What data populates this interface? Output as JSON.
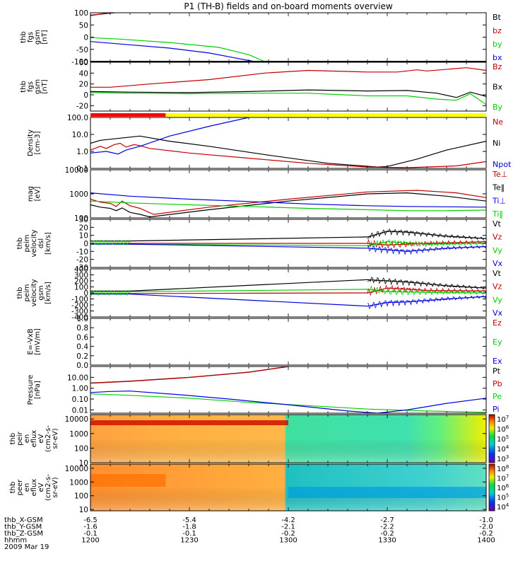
{
  "title": "P1 (TH-B) fields and on-board moments overview",
  "colors": {
    "black": "#000000",
    "red": "#c00000",
    "green": "#00d000",
    "blue": "#0000e0",
    "yellow": "#ffff00"
  },
  "chart_data": [
    {
      "type": "line",
      "ylabel": [
        "thb",
        "fgs",
        "gsm",
        "[nT]"
      ],
      "ylim": [
        -100,
        100
      ],
      "yticks": [
        100,
        50,
        0,
        -50,
        -100
      ],
      "legend": [
        "Bt",
        "bz",
        "by",
        "bx"
      ],
      "legend_colors": [
        "black",
        "red",
        "green",
        "blue"
      ],
      "series": [
        {
          "name": "Bt",
          "color": "black",
          "x": [
            1200,
            1212
          ],
          "y": [
            90,
            100
          ]
        },
        {
          "name": "bz",
          "color": "red",
          "x": [
            1200,
            1206,
            1212
          ],
          "y": [
            88,
            96,
            100
          ]
        },
        {
          "name": "by",
          "color": "green",
          "x": [
            1200,
            1215,
            1240,
            1265,
            1280,
            1288
          ],
          "y": [
            -2,
            -8,
            -22,
            -42,
            -72,
            -100
          ]
        },
        {
          "name": "bx",
          "color": "blue",
          "x": [
            1200,
            1215,
            1240,
            1260,
            1273,
            1283
          ],
          "y": [
            -18,
            -28,
            -45,
            -65,
            -85,
            -100
          ]
        }
      ]
    },
    {
      "type": "line",
      "ylabel": [
        "thb",
        "fgs",
        "gsm",
        "[nT]"
      ],
      "ylim": [
        -30,
        60
      ],
      "yticks": [
        60,
        40,
        20,
        0,
        -20
      ],
      "legend": [
        "Bz",
        "Bx",
        "By"
      ],
      "legend_colors": [
        "red",
        "black",
        "green"
      ],
      "series": [
        {
          "name": "Bz",
          "color": "red",
          "x": [
            1200,
            1210,
            1230,
            1260,
            1288,
            1310,
            1340,
            1355,
            1365,
            1370,
            1390,
            1400
          ],
          "y": [
            14,
            14,
            20,
            28,
            40,
            45,
            42,
            42,
            46,
            44,
            50,
            45
          ]
        },
        {
          "name": "Bx",
          "color": "black",
          "x": [
            1200,
            1220,
            1250,
            1280,
            1310,
            1340,
            1360,
            1375,
            1385,
            1392,
            1400
          ],
          "y": [
            6,
            5,
            4,
            6,
            9,
            7,
            8,
            3,
            -5,
            5,
            -3
          ]
        },
        {
          "name": "By",
          "color": "green",
          "x": [
            1200,
            1220,
            1250,
            1280,
            1310,
            1340,
            1360,
            1375,
            1385,
            1392,
            1400
          ],
          "y": [
            4,
            3,
            2,
            3,
            3,
            -2,
            -2,
            -8,
            -10,
            2,
            -18
          ]
        }
      ]
    },
    {
      "type": "line",
      "ylabel": [
        "Density",
        "[cm-3]"
      ],
      "yscale": "log",
      "ylim": [
        0.1,
        100
      ],
      "yticks": [
        100.0,
        10.0,
        1.0,
        0.1
      ],
      "ytick_labels": [
        "100.0",
        "10.0",
        "1.0",
        "0.1"
      ],
      "legend": [
        "Ne",
        "Ni",
        "Npot"
      ],
      "legend_colors": [
        "red",
        "black",
        "blue"
      ],
      "series": [
        {
          "name": "Ni",
          "color": "black",
          "x": [
            1200,
            1205,
            1215,
            1225,
            1240,
            1260,
            1290,
            1320,
            1345,
            1350,
            1365,
            1380,
            1400
          ],
          "y": [
            3,
            4.5,
            6,
            8,
            4,
            2,
            0.6,
            0.2,
            0.12,
            0.13,
            0.35,
            1.2,
            4
          ]
        },
        {
          "name": "Ne",
          "color": "red",
          "x": [
            1200,
            1205,
            1208,
            1212,
            1215,
            1218,
            1222,
            1225,
            1230,
            1250,
            1280,
            1310,
            1340,
            1360,
            1385,
            1400
          ],
          "y": [
            1.2,
            2,
            1.5,
            2.5,
            3,
            1.8,
            2.5,
            2.2,
            1.5,
            0.8,
            0.4,
            0.2,
            0.12,
            0.11,
            0.14,
            0.25
          ]
        },
        {
          "name": "Npot",
          "color": "blue",
          "x": [
            1200,
            1208,
            1214,
            1218,
            1225,
            1240,
            1260,
            1280
          ],
          "y": [
            0.8,
            1.0,
            0.7,
            1.2,
            2,
            8,
            30,
            100
          ]
        }
      ]
    },
    {
      "type": "line",
      "ylabel": [
        "mag",
        "[eV]"
      ],
      "yscale": "log",
      "ylim": [
        100,
        10000
      ],
      "yticks": [
        10000,
        1000,
        100
      ],
      "legend": [
        "Te⊥",
        "Te‖",
        "Ti⊥",
        "Ti‖"
      ],
      "legend_colors": [
        "red",
        "black",
        "blue",
        "green"
      ],
      "series": [
        {
          "name": "Te‖",
          "color": "black",
          "x": [
            1200,
            1205,
            1210,
            1213,
            1216,
            1220,
            1225,
            1230,
            1260,
            1300,
            1340,
            1360,
            1380,
            1400
          ],
          "y": [
            350,
            280,
            250,
            200,
            260,
            170,
            140,
            110,
            220,
            500,
            1000,
            1100,
            800,
            500
          ]
        },
        {
          "name": "Te⊥",
          "color": "red",
          "x": [
            1200,
            1205,
            1210,
            1213,
            1216,
            1220,
            1225,
            1232,
            1260,
            1300,
            1340,
            1365,
            1385,
            1400
          ],
          "y": [
            600,
            450,
            400,
            300,
            500,
            320,
            250,
            140,
            280,
            600,
            1200,
            1400,
            1100,
            700
          ]
        },
        {
          "name": "Ti⊥",
          "color": "blue",
          "x": [
            1200,
            1220,
            1250,
            1280,
            1310,
            1340,
            1360,
            1380,
            1400
          ],
          "y": [
            1100,
            800,
            600,
            480,
            380,
            320,
            300,
            290,
            280
          ]
        },
        {
          "name": "Ti‖",
          "color": "green",
          "x": [
            1200,
            1220,
            1250,
            1280,
            1310,
            1340,
            1360,
            1380,
            1400
          ],
          "y": [
            500,
            420,
            350,
            300,
            250,
            220,
            200,
            200,
            210
          ]
        }
      ]
    },
    {
      "type": "line",
      "ylabel": [
        "thb",
        "peim",
        "velocity",
        "dsl",
        "[km/s]"
      ],
      "ylim": [
        -30,
        30
      ],
      "yticks": [
        30,
        20,
        10,
        0,
        -10,
        -20,
        -30
      ],
      "legend": [
        "Vt",
        "Vz",
        "Vy",
        "Vx"
      ],
      "legend_colors": [
        "black",
        "red",
        "green",
        "blue"
      ],
      "series": [
        {
          "name": "Vt",
          "color": "black",
          "x": [
            1200,
            1220,
            1340,
            1350,
            1360,
            1380,
            1400
          ],
          "y": [
            3,
            3,
            8,
            15,
            14,
            9,
            6
          ]
        },
        {
          "name": "Vz",
          "color": "red",
          "x": [
            1200,
            1220,
            1340,
            1350,
            1370,
            1400
          ],
          "y": [
            0,
            0,
            0,
            -2,
            0,
            2
          ]
        },
        {
          "name": "Vy",
          "color": "green",
          "x": [
            1200,
            1220,
            1340,
            1350,
            1370,
            1400
          ],
          "y": [
            0,
            -1,
            -3,
            2,
            -1,
            0
          ]
        },
        {
          "name": "Vx",
          "color": "blue",
          "x": [
            1200,
            1220,
            1340,
            1350,
            1360,
            1380,
            1400
          ],
          "y": [
            -1,
            -1,
            -6,
            -8,
            -10,
            -6,
            -4
          ]
        }
      ]
    },
    {
      "type": "line",
      "ylabel": [
        "thb",
        "peim",
        "velocity",
        "gsm",
        "[km/s]"
      ],
      "ylim": [
        -400,
        400
      ],
      "yticks": [
        400,
        300,
        200,
        100,
        0,
        -100,
        -200,
        -300,
        -400
      ],
      "legend": [
        "Vt",
        "Vz",
        "Vy",
        "Vx"
      ],
      "legend_colors": [
        "black",
        "red",
        "green",
        "blue"
      ],
      "series": [
        {
          "name": "Vt",
          "color": "black",
          "x": [
            1200,
            1220,
            1340,
            1350,
            1360,
            1380,
            1400
          ],
          "y": [
            30,
            30,
            220,
            200,
            180,
            120,
            80
          ]
        },
        {
          "name": "Vz",
          "color": "red",
          "x": [
            1200,
            1220,
            1340,
            1350,
            1370,
            1400
          ],
          "y": [
            -10,
            -10,
            0,
            80,
            40,
            30
          ]
        },
        {
          "name": "Vy",
          "color": "green",
          "x": [
            1200,
            1220,
            1340,
            1350,
            1370,
            1400
          ],
          "y": [
            20,
            20,
            60,
            20,
            10,
            0
          ]
        },
        {
          "name": "Vx",
          "color": "blue",
          "x": [
            1200,
            1220,
            1340,
            1350,
            1360,
            1380,
            1400
          ],
          "y": [
            -20,
            -20,
            -220,
            -160,
            -150,
            -100,
            -60
          ]
        }
      ]
    },
    {
      "type": "line",
      "ylabel": [
        "E=-VxB",
        "[mV/m]"
      ],
      "ylim": [
        0,
        1
      ],
      "yticks": [
        1.0,
        0.8,
        0.6,
        0.4,
        0.2,
        0.0
      ],
      "ytick_labels": [
        "1.0",
        "0.8",
        "0.6",
        "0.4",
        "0.2",
        "0.0"
      ],
      "legend": [
        "Ez",
        "Ey",
        "Ex"
      ],
      "legend_colors": [
        "red",
        "green",
        "blue"
      ],
      "series": []
    },
    {
      "type": "line",
      "ylabel": [
        "Pressure",
        "[nPa]"
      ],
      "yscale": "log",
      "ylim": [
        0.005,
        100
      ],
      "yticks": [
        10,
        1,
        0.1,
        0.01
      ],
      "ytick_labels": [
        "10.00",
        "1.00",
        "0.10",
        "0.01"
      ],
      "legend": [
        "Pt",
        "Pb",
        "Pe",
        "Pi"
      ],
      "legend_colors": [
        "black",
        "red",
        "green",
        "blue"
      ],
      "series": [
        {
          "name": "Pt",
          "color": "black",
          "x": [
            1200,
            1220,
            1250,
            1280,
            1300
          ],
          "y": [
            3,
            4.5,
            10,
            30,
            100
          ]
        },
        {
          "name": "Pb",
          "color": "red",
          "x": [
            1200,
            1220,
            1250,
            1280,
            1300
          ],
          "y": [
            2.9,
            4.3,
            9.8,
            29,
            98
          ]
        },
        {
          "name": "Pe",
          "color": "green",
          "x": [
            1200,
            1220,
            1250,
            1280,
            1310,
            1340,
            1370,
            1400
          ],
          "y": [
            0.3,
            0.22,
            0.12,
            0.05,
            0.025,
            0.012,
            0.008,
            0.006
          ]
        },
        {
          "name": "Pi",
          "color": "blue",
          "x": [
            1200,
            1210,
            1220,
            1245,
            1270,
            1300,
            1330,
            1345,
            1360,
            1380,
            1400
          ],
          "y": [
            0.4,
            0.5,
            0.55,
            0.25,
            0.1,
            0.03,
            0.008,
            0.005,
            0.01,
            0.04,
            0.12
          ]
        }
      ]
    },
    {
      "type": "heatmap",
      "ylabel": [
        "thb",
        "peir",
        "en",
        "eflux",
        "eV",
        "(cm2-s-",
        "sr-eV)"
      ],
      "yscale": "log",
      "ylim": [
        10,
        20000
      ],
      "yticks": [
        10000,
        1000,
        100,
        10
      ],
      "colorbar": {
        "scale": "log",
        "range": [
          500,
          10000000
        ],
        "ticks": [
          "10^7",
          "10^6",
          "10^5",
          "10^4",
          "10^3"
        ]
      }
    },
    {
      "type": "heatmap",
      "ylabel": [
        "thb",
        "peer",
        "en",
        "eflux",
        "eV",
        "(cm2-s-",
        "sr-eV)"
      ],
      "yscale": "log",
      "ylim": [
        8,
        20000
      ],
      "yticks": [
        10000,
        1000,
        100,
        10
      ],
      "colorbar": {
        "scale": "log",
        "range": [
          5000,
          100000000
        ],
        "ticks": [
          "10^8",
          "10^7",
          "10^6",
          "10^5",
          "10^4"
        ]
      }
    }
  ],
  "x_axis": {
    "range": [
      1200,
      1400
    ],
    "rows": [
      {
        "name": "thb_X-GSM",
        "values": [
          "-6.5",
          "-5.4",
          "-4.2",
          "-2.7",
          "-1.0"
        ]
      },
      {
        "name": "thb_Y-GSM",
        "values": [
          "-1.6",
          "-1.8",
          "-2.1",
          "-2.2",
          "-2.0"
        ]
      },
      {
        "name": "thb_Z-GSM",
        "values": [
          "-0.1",
          "-0.1",
          "-0.2",
          "-0.2",
          "-0.2"
        ]
      },
      {
        "name": "hhmm",
        "values": [
          "1200",
          "1230",
          "1300",
          "1330",
          "1400"
        ]
      }
    ],
    "date": "2009 Mar 19"
  }
}
